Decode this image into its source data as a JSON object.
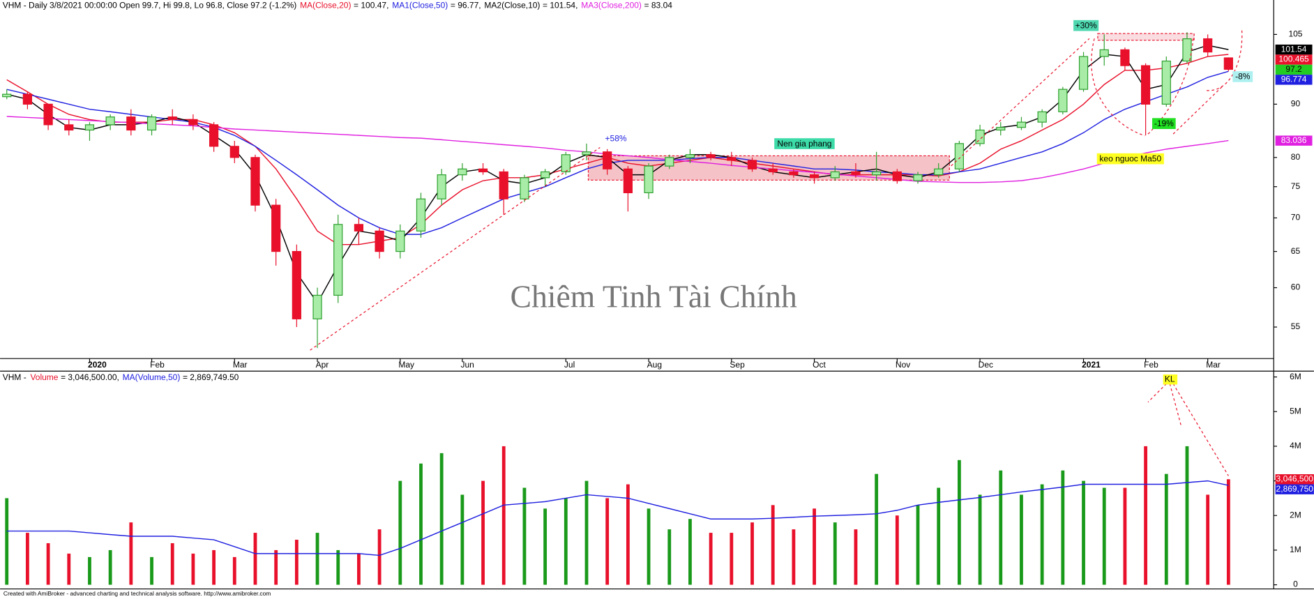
{
  "chart_data": [
    {
      "type": "candlestick",
      "log_scale": true,
      "header": "VHM - Daily 3/8/2021 00:00:00 Open 99.7, Hi 99.8, Lo 96.8, Close 97.2 (-1.2%)",
      "up_color": "#2ea02e",
      "down_color": "#e8102a",
      "categories": [
        null,
        null,
        null,
        null,
        "2020",
        null,
        null,
        "Feb",
        null,
        null,
        null,
        "Mar",
        null,
        null,
        null,
        "Apr",
        null,
        null,
        null,
        "May",
        null,
        null,
        "Jun",
        null,
        null,
        null,
        null,
        "Jul",
        null,
        null,
        null,
        "Aug",
        null,
        null,
        null,
        "Sep",
        null,
        null,
        null,
        "Oct",
        null,
        null,
        null,
        "Nov",
        null,
        null,
        null,
        "Dec",
        null,
        null,
        null,
        null,
        "2021",
        null,
        null,
        "Feb",
        null,
        null,
        "Mar",
        null
      ],
      "open": [
        91.5,
        92,
        90,
        86,
        85,
        86,
        87.5,
        85,
        87.5,
        87,
        86,
        82,
        80,
        72,
        65,
        56,
        59,
        69,
        68,
        65,
        68,
        73,
        77,
        78,
        77.5,
        73,
        76.5,
        77.5,
        80.5,
        81,
        78,
        74,
        78.5,
        80,
        80.5,
        80,
        79.5,
        78,
        77.5,
        77,
        76.5,
        77.5,
        77,
        77.5,
        76,
        77,
        78,
        82.5,
        85,
        85.5,
        86.5,
        88.5,
        93,
        100,
        101.5,
        98,
        90,
        99,
        104,
        99.7
      ],
      "high": [
        93,
        92.5,
        90,
        87,
        86.5,
        88,
        89,
        88,
        89,
        88,
        86.5,
        83,
        80.5,
        73,
        66,
        60,
        70.5,
        70,
        68.5,
        69,
        74,
        78,
        79,
        79,
        78,
        77,
        78,
        81,
        82.5,
        81.5,
        78.5,
        79,
        80.5,
        81.5,
        81,
        81,
        80,
        79,
        78,
        77.5,
        78.5,
        79,
        81,
        78,
        77.5,
        79,
        83,
        86,
        86.5,
        87.5,
        89,
        93.5,
        101,
        105,
        102,
        98.5,
        100,
        105.5,
        105,
        99.8
      ],
      "low": [
        91,
        89,
        85,
        84,
        83,
        85,
        84,
        84,
        86,
        85,
        81,
        79,
        71,
        63,
        55,
        52.5,
        58,
        66,
        64,
        64,
        67,
        72,
        76,
        77,
        70.5,
        72.5,
        75,
        77,
        79.5,
        77,
        71,
        73,
        78,
        79,
        79.5,
        78.5,
        77.5,
        77,
        76.5,
        75.5,
        76,
        76.5,
        76,
        75.5,
        75.5,
        76.5,
        77.5,
        82,
        84,
        85,
        85.5,
        88,
        92.5,
        98,
        97,
        84,
        89.5,
        98.5,
        100,
        96.8
      ],
      "close": [
        92,
        90,
        86,
        85,
        86,
        87.5,
        85,
        87.5,
        87,
        86,
        82,
        80,
        72,
        65,
        56,
        59,
        69,
        68,
        65,
        68,
        73,
        77,
        78,
        77.5,
        73,
        76.5,
        77.5,
        80.5,
        81,
        78,
        74,
        78.5,
        80,
        80.5,
        80,
        79.5,
        78,
        77.5,
        77,
        76.5,
        77.5,
        77,
        77.5,
        76,
        77,
        78,
        82.5,
        85,
        85.5,
        86.5,
        88.5,
        93,
        100,
        101.5,
        98,
        90,
        99,
        104,
        101,
        97.2
      ],
      "lines": [
        {
          "name": "MA(Close,20)",
          "legend_text": "= 100.47,",
          "color": "#e8102a",
          "values": [
            95,
            92.5,
            90,
            88,
            87,
            86.5,
            86.5,
            86.5,
            87,
            87,
            86,
            84.5,
            82,
            78,
            73,
            68,
            66,
            66,
            66.5,
            67,
            69,
            72,
            74.5,
            76,
            76.5,
            76.5,
            77,
            78,
            79,
            80,
            79,
            78.5,
            79,
            79.5,
            80,
            79.5,
            79,
            78.5,
            78,
            77.5,
            77,
            77,
            77,
            77,
            77,
            76.8,
            77.5,
            79,
            81.5,
            83,
            85,
            87,
            90,
            94,
            97,
            97,
            97.5,
            98.5,
            100,
            100.47
          ]
        },
        {
          "name": "MA1(Close,50)",
          "legend_text": "= 96.77,",
          "color": "#2020e0",
          "values": [
            93,
            92,
            91,
            90,
            89,
            88.5,
            88,
            87.5,
            87,
            86.5,
            85.5,
            84,
            82,
            79.5,
            77,
            74.5,
            72,
            70,
            68.5,
            67.5,
            67.5,
            68.5,
            70,
            71.5,
            73,
            74,
            75,
            76.5,
            78,
            79,
            79.5,
            79.5,
            79.5,
            79.8,
            80,
            80,
            79.5,
            79,
            78.5,
            78,
            78,
            77.8,
            77.5,
            77.3,
            77,
            77,
            77.5,
            78,
            79,
            80,
            81,
            82.5,
            84.5,
            87,
            89,
            90.5,
            92,
            93.5,
            95.5,
            96.77
          ]
        },
        {
          "name": "MA2(Close,10)",
          "legend_text": "= 101.54,",
          "color": "#000000",
          "values": [
            92,
            91,
            88,
            85.5,
            85,
            86,
            86,
            86.5,
            87.5,
            86.5,
            84,
            81.5,
            77,
            70,
            62,
            58,
            63,
            68,
            67.5,
            66.5,
            70,
            75,
            77.5,
            78,
            76,
            75.5,
            76.5,
            79,
            80.5,
            80,
            77,
            77,
            79.5,
            80.5,
            80.5,
            80,
            78.5,
            77.5,
            77,
            76.5,
            77,
            77.5,
            78,
            77,
            76.5,
            77.5,
            80.5,
            84,
            85.5,
            86,
            87.5,
            91,
            97,
            100.5,
            100,
            93,
            94,
            101,
            102.5,
            101.54
          ]
        },
        {
          "name": "MA3(Close,200)",
          "legend_text": "= 83.04",
          "color": "#e020e0",
          "values": [
            87.6,
            87.4,
            87.2,
            87,
            86.8,
            86.6,
            86.4,
            86.2,
            86,
            85.8,
            85.5,
            85.2,
            85,
            84.8,
            84.6,
            84.4,
            84.2,
            84,
            83.8,
            83.6,
            83.5,
            83.2,
            82.9,
            82.6,
            82.3,
            82,
            81.7,
            81.3,
            81,
            80.6,
            80.3,
            80,
            79.6,
            79.3,
            79,
            78.6,
            78.3,
            78,
            77.7,
            77.4,
            77.1,
            76.8,
            76.5,
            76.2,
            75.9,
            75.8,
            75.7,
            75.7,
            75.8,
            76,
            76.5,
            77.2,
            78,
            79,
            80,
            80.8,
            81.5,
            82,
            82.5,
            83.04
          ]
        }
      ],
      "ylim": [
        51.3,
        113.3
      ],
      "yticks": [
        55,
        60,
        65,
        70,
        75,
        80,
        90,
        105
      ],
      "price_markers": [
        {
          "value": 101.54,
          "color": "#000000"
        },
        {
          "value": 100.465,
          "color": "#e8102a"
        },
        {
          "value": 97.2,
          "color": "#22cc22"
        },
        {
          "value": 96.774,
          "color": "#2020e0"
        },
        {
          "value": 83.036,
          "color": "#e020e0"
        }
      ],
      "annotations": [
        "+58%",
        "Nen gia phang",
        "+30%",
        "-19%",
        "-8%",
        "keo nguoc Ma50"
      ]
    },
    {
      "type": "bar",
      "header": "VHM - ",
      "series_name": "Volume",
      "series_text": "= 3,046,500.00,",
      "color": "#e8102a",
      "ma_name": "MA(Volume,50)",
      "ma_text": "= 2,869,749.50",
      "ma_color": "#2020e0",
      "values": [
        2500000,
        1500000,
        1200000,
        900000,
        800000,
        1000000,
        1800000,
        800000,
        1200000,
        900000,
        1000000,
        800000,
        1500000,
        1000000,
        1300000,
        1500000,
        1000000,
        900000,
        1600000,
        3000000,
        3500000,
        3800000,
        2600000,
        3000000,
        4000000,
        2800000,
        2200000,
        2500000,
        3000000,
        2500000,
        2900000,
        2200000,
        1600000,
        1900000,
        1500000,
        1500000,
        1800000,
        2300000,
        1600000,
        2200000,
        1800000,
        1600000,
        3200000,
        2000000,
        2300000,
        2800000,
        3600000,
        2600000,
        3300000,
        2600000,
        2900000,
        3300000,
        3000000,
        2800000,
        2800000,
        4000000,
        3200000,
        4000000,
        2600000,
        3046500
      ],
      "ma_values": [
        1550000,
        1550000,
        1550000,
        1550000,
        1500000,
        1450000,
        1400000,
        1400000,
        1400000,
        1350000,
        1300000,
        1100000,
        900000,
        900000,
        900000,
        900000,
        900000,
        900000,
        850000,
        1050000,
        1300000,
        1550000,
        1800000,
        2050000,
        2300000,
        2350000,
        2400000,
        2500000,
        2600000,
        2550000,
        2500000,
        2350000,
        2200000,
        2050000,
        1900000,
        1900000,
        1900000,
        1920000,
        1950000,
        1980000,
        2000000,
        2020000,
        2050000,
        2150000,
        2300000,
        2380000,
        2450000,
        2520000,
        2600000,
        2680000,
        2750000,
        2820000,
        2900000,
        2900000,
        2900000,
        2900000,
        2900000,
        2950000,
        3000000,
        2869749.5
      ],
      "ylim": [
        0,
        6120000
      ],
      "yticks": [
        0,
        {
          "value": 1000000,
          "label": "1M"
        },
        {
          "value": 2000000,
          "label": "2M"
        },
        {
          "value": 3000000,
          "label": "3M"
        },
        {
          "value": 4000000,
          "label": "4M"
        },
        {
          "value": 5000000,
          "label": "5M"
        },
        {
          "value": 6000000,
          "label": "6M"
        }
      ],
      "markers": [
        {
          "value": 3046500,
          "label": "3,046,500",
          "color": "#e8102a"
        },
        {
          "value": 2869750,
          "label": "2,869,750",
          "color": "#2020e0"
        }
      ],
      "annotations": [
        "KL"
      ]
    }
  ],
  "watermark": "Chiêm Tinh Tài Chính",
  "footer": "Created with AmiBroker - advanced charting and technical analysis software. http://www.amibroker.com"
}
